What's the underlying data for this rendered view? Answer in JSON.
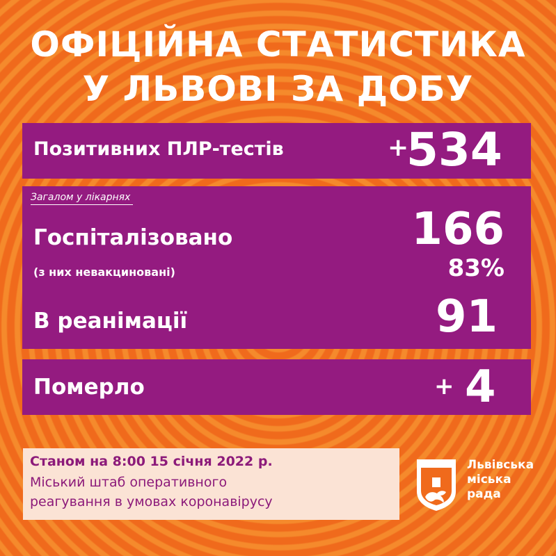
{
  "title": {
    "line1": "ОФІЦІЙНА СТАТИСТИКА",
    "line2": "У ЛЬВОВІ ЗА ДОБУ"
  },
  "tests": {
    "label": "Позитивних ПЛР-тестів",
    "sign": "+",
    "value": "534"
  },
  "hospital": {
    "caption": "Загалом у лікарнях",
    "hospitalized_label": "Госпіталізовано",
    "hospitalized_value": "166",
    "unvaccinated_label": "(з них невакциновані)",
    "unvaccinated_value": "83%",
    "icu_label": "В реанімації",
    "icu_value": "91"
  },
  "deaths": {
    "label": "Померло",
    "sign": "+",
    "value": "4"
  },
  "footer": {
    "date": "Станом на 8:00 15 січня 2022 р.",
    "org_line1": "Міський штаб оперативного",
    "org_line2": "реагування в умовах коронавірусу"
  },
  "logo": {
    "icon": "lviv-city-council-emblem-icon",
    "line1": "Львівська",
    "line2": "міська",
    "line3": "рада"
  },
  "colors": {
    "background": "#f06a1c",
    "panel": "#941b80",
    "footer_bg": "#fbe3d5",
    "footer_text": "#8c1a7a"
  }
}
